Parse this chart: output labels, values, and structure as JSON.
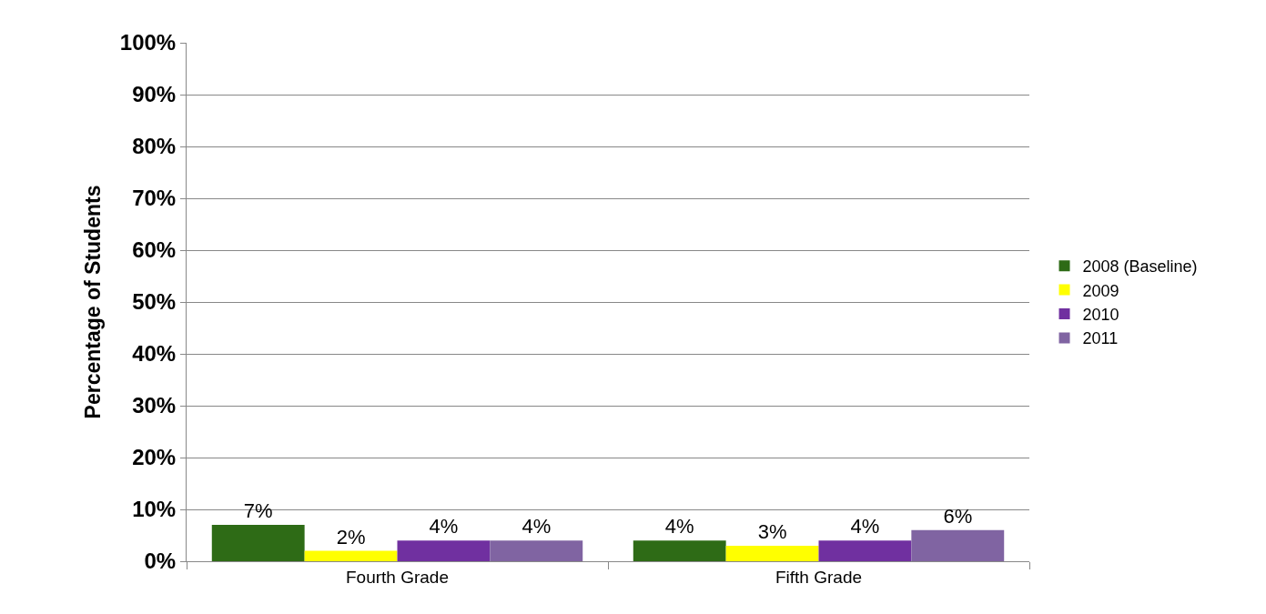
{
  "chart_data": {
    "type": "bar",
    "ylabel": "Percentage of Students",
    "categories": [
      "Fourth Grade",
      "Fifth Grade"
    ],
    "series": [
      {
        "name": "2008 (Baseline)",
        "color": "#2e6b16",
        "values": [
          7,
          4
        ],
        "value_labels": [
          "7%",
          "4%"
        ]
      },
      {
        "name": "2009",
        "color": "#ffff00",
        "values": [
          2,
          3
        ],
        "value_labels": [
          "2%",
          "3%"
        ]
      },
      {
        "name": "2010",
        "color": "#7030a0",
        "values": [
          4,
          4
        ],
        "value_labels": [
          "4%",
          "4%"
        ]
      },
      {
        "name": "2011",
        "color": "#8064a2",
        "values": [
          4,
          6
        ],
        "value_labels": [
          "4%",
          "6%"
        ]
      }
    ],
    "ylim": [
      0,
      100
    ],
    "yticks": [
      {
        "value": 0,
        "label": "0%"
      },
      {
        "value": 10,
        "label": "10%"
      },
      {
        "value": 20,
        "label": "20%"
      },
      {
        "value": 30,
        "label": "30%"
      },
      {
        "value": 40,
        "label": "40%"
      },
      {
        "value": 50,
        "label": "50%"
      },
      {
        "value": 60,
        "label": "60%"
      },
      {
        "value": 70,
        "label": "70%"
      },
      {
        "value": 80,
        "label": "80%"
      },
      {
        "value": 90,
        "label": "90%"
      },
      {
        "value": 100,
        "label": "100%"
      }
    ],
    "grid": "y",
    "legend": "right"
  }
}
